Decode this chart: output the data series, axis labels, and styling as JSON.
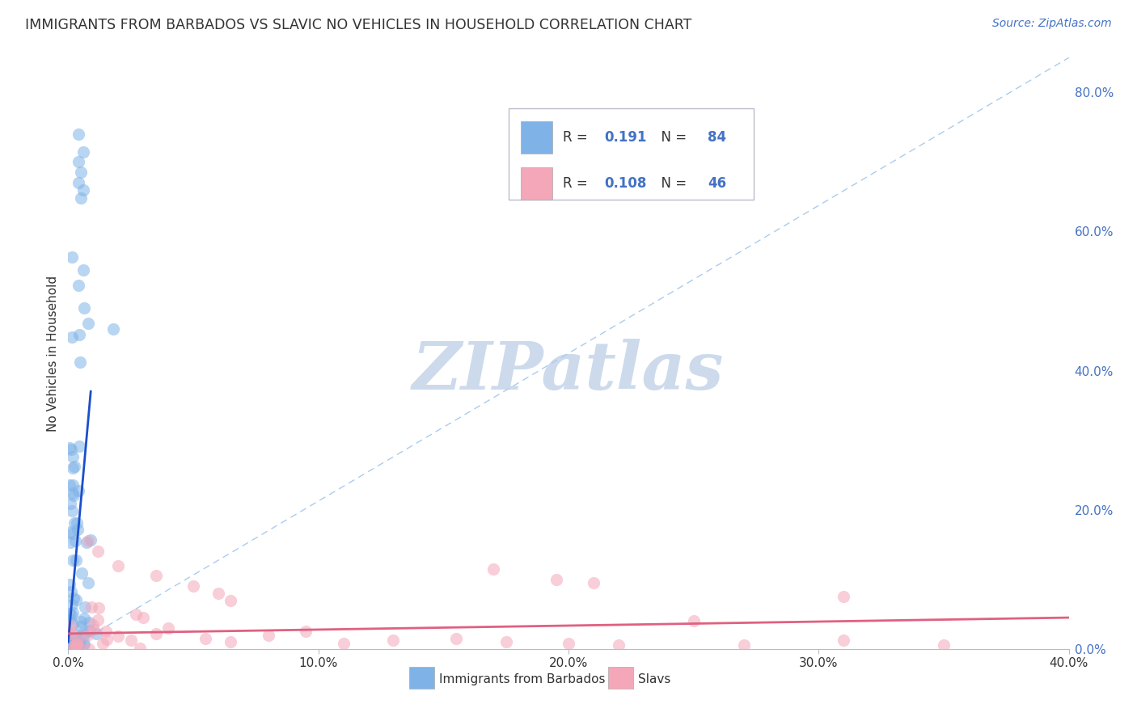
{
  "title": "IMMIGRANTS FROM BARBADOS VS SLAVIC NO VEHICLES IN HOUSEHOLD CORRELATION CHART",
  "source": "Source: ZipAtlas.com",
  "ylabel": "No Vehicles in Household",
  "xlim": [
    0.0,
    0.4
  ],
  "ylim": [
    0.0,
    0.85
  ],
  "xticks": [
    0.0,
    0.1,
    0.2,
    0.3,
    0.4
  ],
  "xtick_labels": [
    "0.0%",
    "10.0%",
    "20.0%",
    "30.0%",
    "40.0%"
  ],
  "yticks_right": [
    0.0,
    0.2,
    0.4,
    0.6,
    0.8
  ],
  "ytick_right_labels": [
    "0.0%",
    "20.0%",
    "40.0%",
    "60.0%",
    "80.0%"
  ],
  "legend_R1": "0.191",
  "legend_N1": "84",
  "legend_R2": "0.108",
  "legend_N2": "46",
  "cat_label1": "Immigrants from Barbados",
  "cat_label2": "Slavs",
  "watermark": "ZIPatlas",
  "watermark_color": "#ccdaec",
  "background_color": "#ffffff",
  "grid_color": "#dddddd",
  "blue_scatter_color": "#7fb3e8",
  "pink_scatter_color": "#f4a7b9",
  "blue_line_color": "#1a4fcc",
  "pink_line_color": "#e06080",
  "dashed_line_color": "#aaccee",
  "text_color": "#333333",
  "accent_color": "#4472c4",
  "blue_line_x": [
    0.0,
    0.009
  ],
  "blue_line_y": [
    0.01,
    0.37
  ],
  "pink_line_x": [
    0.0,
    0.4
  ],
  "pink_line_y": [
    0.022,
    0.045
  ],
  "dashed_line_x": [
    0.0,
    0.4
  ],
  "dashed_line_y": [
    0.0,
    0.85
  ]
}
